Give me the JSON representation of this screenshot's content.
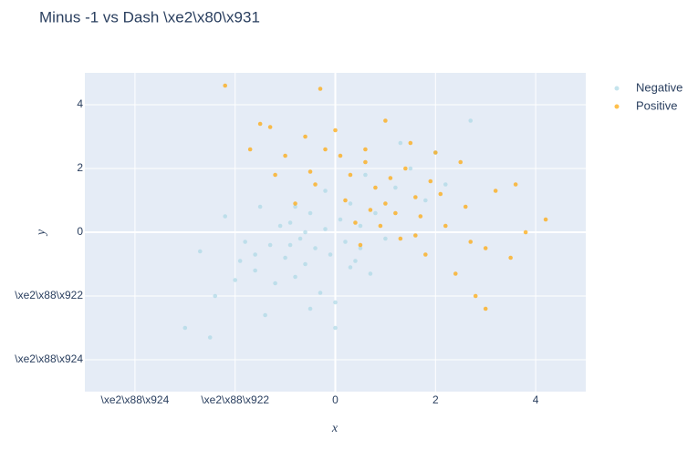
{
  "chart_data": {
    "type": "scatter",
    "title": "Minus -1 vs Dash \\xe2\\x80\\x931",
    "x_label": "x",
    "y_label": "y",
    "xlim": [
      -5,
      5
    ],
    "ylim": [
      -5,
      5
    ],
    "xticks": [
      {
        "value": -4,
        "label": "\\xe2\\x88\\x924"
      },
      {
        "value": -2,
        "label": "\\xe2\\x88\\x922"
      },
      0,
      2,
      4
    ],
    "yticks": [
      {
        "value": -4,
        "label": "\\xe2\\x88\\x924"
      },
      {
        "value": -2,
        "label": "\\xe2\\x88\\x922"
      },
      0,
      2,
      4
    ],
    "grid": true,
    "legend": "right",
    "series": [
      {
        "name": "Negative",
        "color": "#add8e6",
        "x": [
          -3.0,
          -2.5,
          -2.7,
          -2.2,
          -2.0,
          -1.8,
          -1.6,
          -1.5,
          -1.3,
          -1.2,
          -1.0,
          -0.9,
          -0.8,
          -0.7,
          -0.6,
          -0.5,
          -0.4,
          -0.3,
          -0.2,
          -0.1,
          0,
          0.1,
          0.2,
          0.3,
          0.4,
          0.5,
          0.6,
          0.8,
          1.0,
          1.2,
          1.5,
          1.8,
          2.0,
          2.2,
          2.7,
          0,
          -1.1,
          -0.5,
          0.3,
          -2.4,
          -1.9,
          -0.8,
          0.5,
          1.3,
          -1.4,
          -0.2,
          0.7,
          -0.9,
          -1.6,
          -0.6
        ],
        "values": [
          -3.0,
          -3.3,
          -0.6,
          0.5,
          -1.5,
          -0.3,
          -1.2,
          0.8,
          -0.4,
          -1.6,
          -0.8,
          0.3,
          -1.4,
          -0.2,
          -1.0,
          0.6,
          -0.5,
          -1.9,
          0.1,
          -0.7,
          -3.0,
          0.4,
          -0.3,
          0.9,
          -0.9,
          0.2,
          1.8,
          0.6,
          -0.2,
          1.4,
          2.0,
          1.0,
          2.5,
          1.5,
          3.5,
          -2.2,
          0.2,
          -2.4,
          -1.1,
          -2.0,
          -0.9,
          0.8,
          -0.5,
          2.8,
          -2.6,
          1.3,
          -1.3,
          -0.4,
          -0.7,
          0
        ]
      },
      {
        "name": "Positive",
        "color": "#ffa500",
        "x": [
          -2.2,
          -0.3,
          4.2,
          3.0,
          -1.7,
          -1.5,
          -1.2,
          -1.0,
          -0.8,
          -0.6,
          -0.4,
          -0.2,
          0,
          0.2,
          0.4,
          0.6,
          0.8,
          1.0,
          1.2,
          1.4,
          1.6,
          1.8,
          2.0,
          2.2,
          2.4,
          2.6,
          2.8,
          3.0,
          3.2,
          3.5,
          3.8,
          0.3,
          0.9,
          1.5,
          2.1,
          2.7,
          0.5,
          1.1,
          1.7,
          -0.5,
          0.1,
          0.7,
          1.3,
          1.9,
          2.5,
          3.6,
          -1.3,
          0.6,
          1.0,
          1.6
        ],
        "values": [
          4.6,
          4.5,
          0.4,
          -2.4,
          2.6,
          3.4,
          1.8,
          2.4,
          0.9,
          3.0,
          1.5,
          2.6,
          3.2,
          1.0,
          0.3,
          2.2,
          1.4,
          3.5,
          0.6,
          2.0,
          1.1,
          -0.7,
          2.5,
          0.2,
          -1.3,
          0.8,
          -2.0,
          -0.5,
          1.3,
          -0.8,
          0,
          1.8,
          0.2,
          2.8,
          1.2,
          -0.3,
          -0.4,
          1.7,
          0.5,
          1.9,
          2.4,
          0.7,
          -0.2,
          1.6,
          2.2,
          1.5,
          3.3,
          2.6,
          0.9,
          -0.1
        ]
      }
    ]
  }
}
